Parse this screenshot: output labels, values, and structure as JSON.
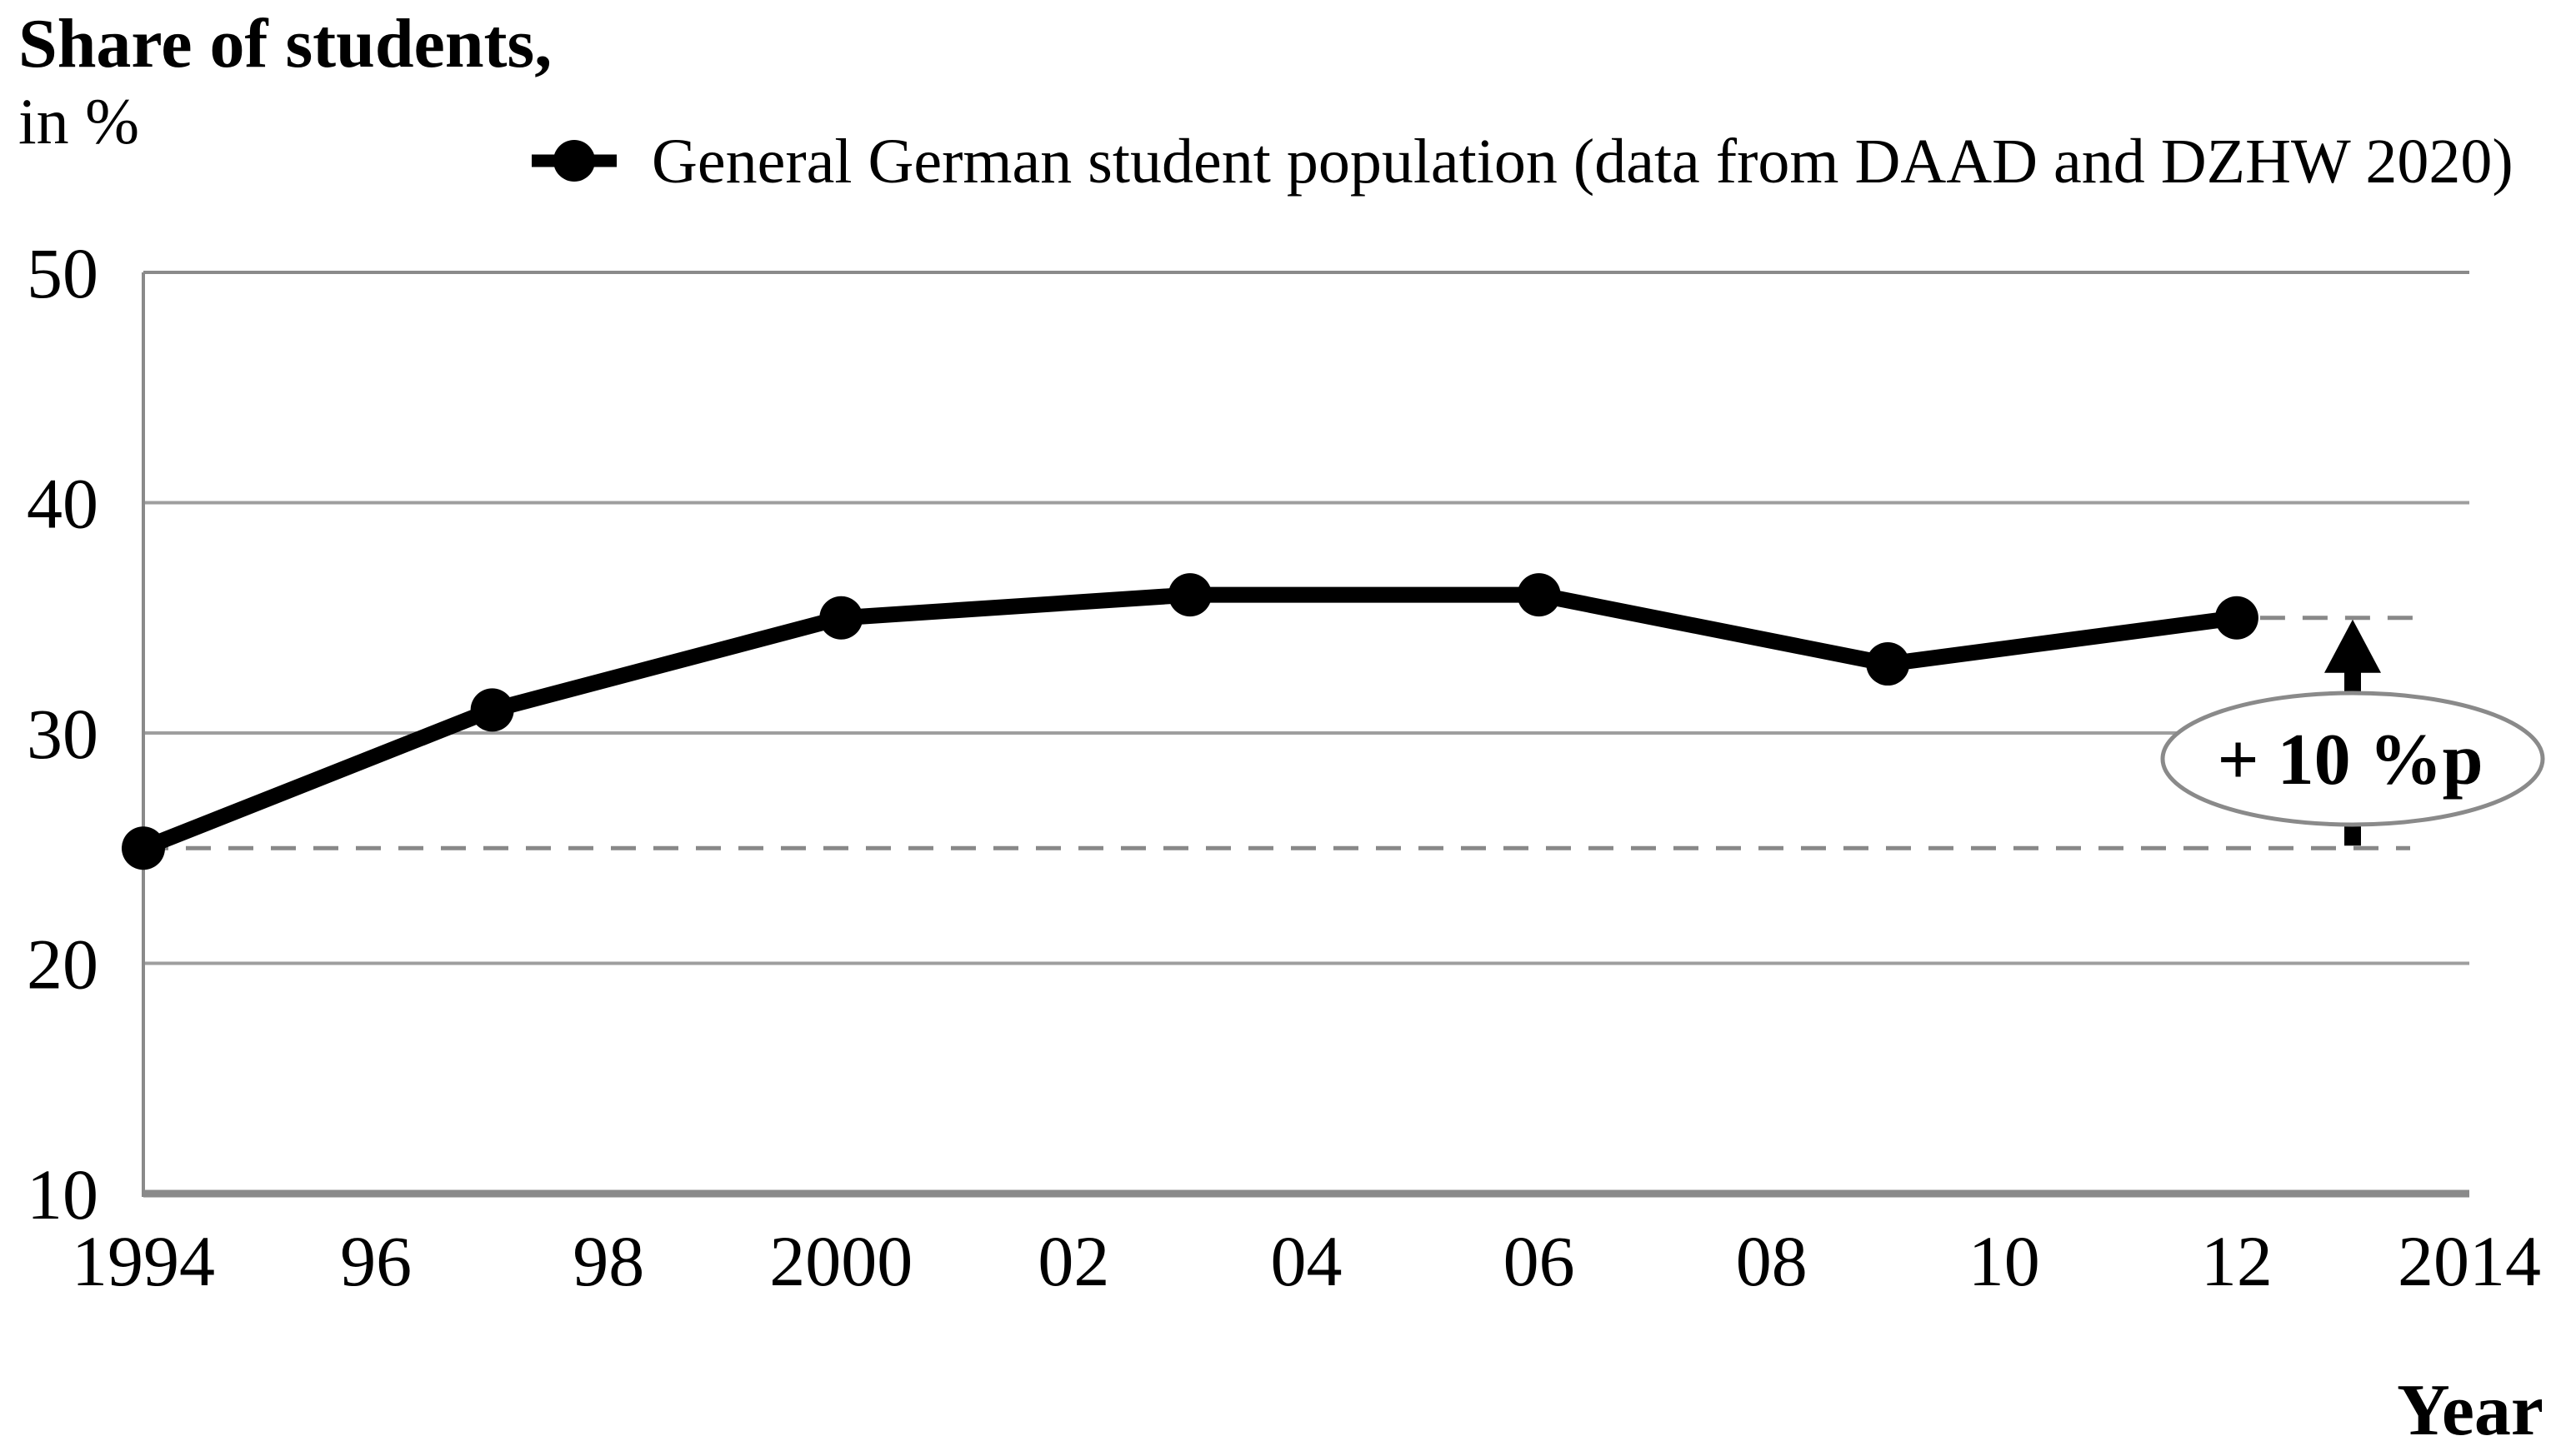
{
  "page": {
    "title_line1": "Share of students,",
    "title_line2": "in %",
    "x_axis_label": "Year"
  },
  "legend": {
    "marker": "filled-circle-on-line",
    "label": "General German student population (data from DAAD and DZHW 2020)"
  },
  "chart_data": {
    "type": "line",
    "title": "Share of students, in %",
    "xlabel": "Year",
    "ylabel": "Share of students, in %",
    "xlim": [
      1994,
      2014
    ],
    "ylim": [
      10,
      50
    ],
    "grid": "horizontal-major",
    "legend_position": "top-center",
    "yticks": [
      {
        "value": 50,
        "label": "50"
      },
      {
        "value": 40,
        "label": "40"
      },
      {
        "value": 30,
        "label": "30"
      },
      {
        "value": 20,
        "label": "20"
      },
      {
        "value": 10,
        "label": "10"
      }
    ],
    "xticks": [
      {
        "value": 1994,
        "label": "1994"
      },
      {
        "value": 1996,
        "label": "96"
      },
      {
        "value": 1998,
        "label": "98"
      },
      {
        "value": 2000,
        "label": "2000"
      },
      {
        "value": 2002,
        "label": "02"
      },
      {
        "value": 2004,
        "label": "04"
      },
      {
        "value": 2006,
        "label": "06"
      },
      {
        "value": 2008,
        "label": "08"
      },
      {
        "value": 2010,
        "label": "10"
      },
      {
        "value": 2012,
        "label": "12"
      },
      {
        "value": 2014,
        "label": "2014"
      }
    ],
    "series": [
      {
        "name": "General German student population (data from DAAD and DZHW 2020)",
        "color": "#000000",
        "marker": "circle",
        "x": [
          1994,
          1997,
          2000,
          2003,
          2006,
          2009,
          2012
        ],
        "values": [
          25,
          31,
          35,
          36,
          36,
          33,
          35
        ]
      }
    ],
    "annotation": {
      "label": "+ 10 %p",
      "from_value": 25,
      "to_value": 35
    }
  },
  "colors": {
    "background": "#ffffff",
    "series_line": "#000000",
    "grid": "#9e9e9e",
    "axis": "#8a8a8a",
    "dashed_reference": "#888888",
    "annotation_ellipse_stroke": "#8a8a8a",
    "text": "#000000"
  }
}
